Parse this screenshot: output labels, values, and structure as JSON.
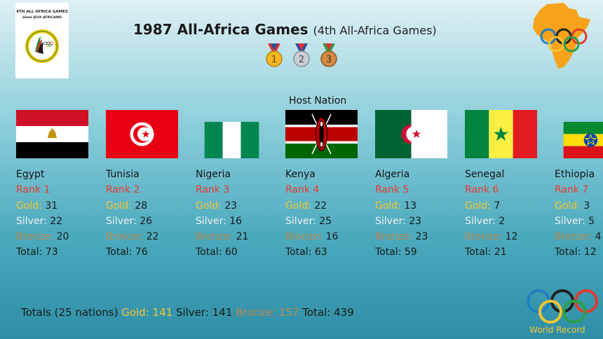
{
  "logo": {
    "line1": "4TH ALL AFRICA GAMES",
    "line2": "4ème JEUX AFRICAINS"
  },
  "header": {
    "title": "1987 All-Africa Games",
    "subtitle": "(4th All-Africa Games)"
  },
  "medal_icons": [
    "1",
    "2",
    "3"
  ],
  "host_label": "Host Nation",
  "labels": {
    "gold": "Gold:",
    "silver": "Silver:",
    "bronze": "Bronze:",
    "total": "Total:"
  },
  "countries": [
    {
      "name": "Egypt",
      "rank": "Rank 1",
      "gold": "31",
      "silver": "22",
      "bronze": "20",
      "total": "73",
      "flag": "egypt-flag"
    },
    {
      "name": "Tunisia",
      "rank": "Rank 2",
      "gold": "28",
      "silver": "26",
      "bronze": "22",
      "total": "76",
      "flag": "tunisia-flag"
    },
    {
      "name": "Nigeria",
      "rank": "Rank 3",
      "gold": "23",
      "silver": "16",
      "bronze": "21",
      "total": "60",
      "flag": "nigeria-flag"
    },
    {
      "name": "Kenya",
      "rank": "Rank 4",
      "gold": "22",
      "silver": "25",
      "bronze": "16",
      "total": "63",
      "flag": "kenya-flag"
    },
    {
      "name": "Algeria",
      "rank": "Rank 5",
      "gold": "13",
      "silver": "23",
      "bronze": "23",
      "total": "59",
      "flag": "algeria-flag"
    },
    {
      "name": "Senegal",
      "rank": "Rank 6",
      "gold": "7",
      "silver": "2",
      "bronze": "12",
      "total": "21",
      "flag": "senegal-flag"
    },
    {
      "name": "Ethiopia",
      "rank": "Rank 7",
      "gold": "3",
      "silver": "5",
      "bronze": "4",
      "total": "12",
      "flag": "ethiopia-flag"
    }
  ],
  "footer": {
    "prefix": "Totals (25 nations)",
    "gold_label": "Gold:",
    "gold": "141",
    "silver_label": "Silver:",
    "silver": "141",
    "bronze_label": "Bronze:",
    "bronze": "157",
    "total_label": "Total:",
    "total": "439"
  },
  "watermark": "World Record",
  "colors": {
    "rank": "#e8392f",
    "gold": "#f5c531",
    "silver": "#f0f0f0",
    "bronze": "#b9874f",
    "africa": "#f7a21b",
    "ring_blue": "#1e7fc4",
    "ring_yellow": "#f5c531",
    "ring_black": "#222222",
    "ring_green": "#2e9f4a",
    "ring_red": "#e33b2f"
  }
}
